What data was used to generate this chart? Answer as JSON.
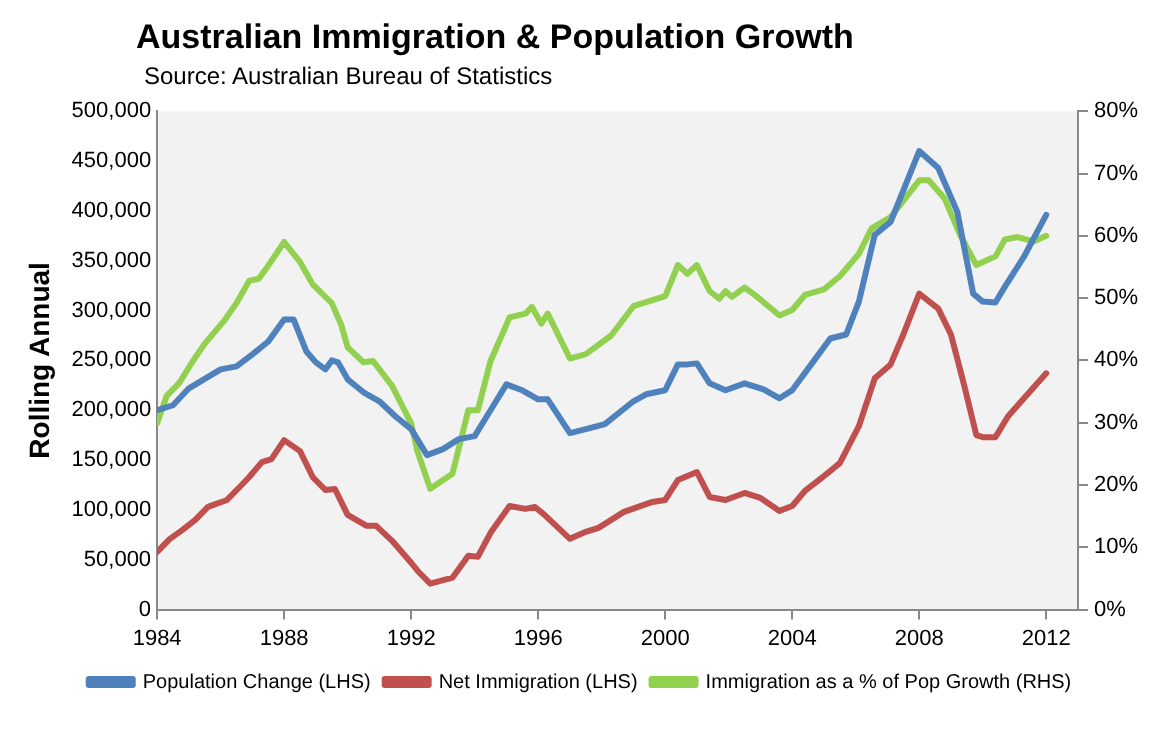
{
  "chart_data": {
    "type": "line",
    "title": "Australian Immigration & Population Growth",
    "annotations": [
      "Source:  Australian Bureau of Statistics"
    ],
    "ylabel": "Rolling Annual",
    "legend": "bottom",
    "grid": false,
    "marker": "none",
    "line_style": "solid",
    "xlim": [
      1984,
      2013
    ],
    "xticks": [
      1984,
      1988,
      1992,
      1996,
      2000,
      2004,
      2008,
      2012
    ],
    "ylim": [
      0,
      500000
    ],
    "yticks": [
      0,
      {
        "value": 50000,
        "label": "50,000"
      },
      {
        "value": 100000,
        "label": "100,000"
      },
      {
        "value": 150000,
        "label": "150,000"
      },
      {
        "value": 200000,
        "label": "200,000"
      },
      {
        "value": 250000,
        "label": "250,000"
      },
      {
        "value": 300000,
        "label": "300,000"
      },
      {
        "value": 350000,
        "label": "350,000"
      },
      {
        "value": 400000,
        "label": "400,000"
      },
      {
        "value": 450000,
        "label": "450,000"
      },
      {
        "value": 500000,
        "label": "500,000"
      }
    ],
    "y2lim": [
      0,
      80
    ],
    "y2ticks": [
      {
        "value": 0,
        "label": "0%"
      },
      {
        "value": 10,
        "label": "10%"
      },
      {
        "value": 20,
        "label": "20%"
      },
      {
        "value": 30,
        "label": "30%"
      },
      {
        "value": 40,
        "label": "40%"
      },
      {
        "value": 50,
        "label": "50%"
      },
      {
        "value": 60,
        "label": "60%"
      },
      {
        "value": 70,
        "label": "70%"
      },
      {
        "value": 80,
        "label": "80%"
      }
    ],
    "series": [
      {
        "name": "Population Change (LHS)",
        "color": "#4f81bd",
        "x": [
          1984,
          1984.5,
          1985,
          1986,
          1986.5,
          1987,
          1987.5,
          1988,
          1988.3,
          1988.7,
          1989,
          1989.3,
          1989.5,
          1989.7,
          1990,
          1990.5,
          1991,
          1991.5,
          1992,
          1992.5,
          1993,
          1993.5,
          1994,
          1994.5,
          1995,
          1995.5,
          1996,
          1996.3,
          1997,
          1997.5,
          1998.1,
          1999,
          1999.4,
          2000,
          2000.4,
          2000.7,
          2001,
          2001.4,
          2001.9,
          2002.5,
          2003.1,
          2003.6,
          2004,
          2004.6,
          2005.2,
          2005.7,
          2006.1,
          2006.6,
          2007.1,
          2008,
          2008.6,
          2009.2,
          2009.7,
          2010,
          2010.4,
          2010.7,
          2011.3,
          2012
        ],
        "values": [
          200000,
          205000,
          222000,
          241000,
          244000,
          256000,
          269000,
          291000,
          291000,
          259000,
          248000,
          241000,
          250000,
          248000,
          231000,
          218000,
          209000,
          194000,
          181000,
          155000,
          161000,
          171000,
          174000,
          200000,
          226000,
          220000,
          211000,
          211000,
          177000,
          181000,
          186000,
          209000,
          216000,
          220000,
          246000,
          246000,
          247000,
          227000,
          220000,
          227000,
          221000,
          212000,
          220000,
          246000,
          272000,
          276000,
          309000,
          376000,
          389000,
          460000,
          443000,
          399000,
          317000,
          309000,
          308000,
          324000,
          354000,
          396000
        ]
      },
      {
        "name": "Net Immigration (LHS)",
        "color": "#c0504d",
        "x": [
          1984,
          1984.4,
          1984.8,
          1985.2,
          1985.6,
          1986.2,
          1986.6,
          1986.9,
          1987.3,
          1987.6,
          1988,
          1988.5,
          1988.9,
          1989.3,
          1989.6,
          1990,
          1990.6,
          1990.9,
          1991.4,
          1992,
          1992.2,
          1992.6,
          1993.3,
          1993.8,
          1994.1,
          1994.5,
          1995.1,
          1995.6,
          1995.9,
          1996.2,
          1997,
          1997.5,
          1997.9,
          1998.7,
          1999.6,
          2000,
          2000.4,
          2000.7,
          2001,
          2001.4,
          2001.9,
          2002.5,
          2003,
          2003.6,
          2004,
          2004.4,
          2005,
          2005.5,
          2006.1,
          2006.6,
          2007.1,
          2007.5,
          2008,
          2008.6,
          2009,
          2009.4,
          2009.8,
          2010,
          2010.4,
          2010.8,
          2011.3,
          2012
        ],
        "values": [
          58000,
          71000,
          80000,
          90000,
          103000,
          110000,
          123000,
          133000,
          148000,
          151000,
          170000,
          159000,
          133000,
          120000,
          121000,
          95000,
          84000,
          84000,
          69000,
          47000,
          39000,
          26000,
          32000,
          54000,
          53000,
          77000,
          104000,
          101000,
          103000,
          95000,
          71000,
          78000,
          82000,
          98000,
          108000,
          110000,
          130000,
          134000,
          138000,
          113000,
          110000,
          117000,
          112000,
          99000,
          104000,
          119000,
          134000,
          147000,
          184000,
          232000,
          246000,
          276000,
          317000,
          302000,
          276000,
          227000,
          175000,
          173000,
          173000,
          194000,
          212000,
          237000
        ]
      },
      {
        "name": "Immigration as a % of Pop Growth (RHS)",
        "color": "#92d050",
        "axis": "y2",
        "x": [
          1984,
          1984.3,
          1984.7,
          1985.1,
          1985.5,
          1986.1,
          1986.5,
          1986.9,
          1987.2,
          1987.5,
          1988,
          1988.5,
          1988.9,
          1989.5,
          1989.8,
          1990,
          1990.5,
          1990.8,
          1991.4,
          1992,
          1992.2,
          1992.6,
          1993.3,
          1993.8,
          1994.1,
          1994.5,
          1995.1,
          1995.6,
          1995.8,
          1996.1,
          1996.3,
          1997,
          1997.5,
          1998.3,
          1999,
          2000,
          2000.4,
          2000.7,
          2001,
          2001.4,
          2001.7,
          2001.9,
          2002.1,
          2002.5,
          2002.9,
          2003.6,
          2004,
          2004.4,
          2005,
          2005.5,
          2006.1,
          2006.5,
          2007.1,
          2008,
          2008.3,
          2008.8,
          2009.3,
          2009.8,
          2010.4,
          2010.7,
          2011.1,
          2011.6,
          2012
        ],
        "values": [
          29.9,
          34.3,
          36.4,
          39.7,
          42.7,
          46.3,
          49.2,
          52.8,
          53.1,
          55.2,
          59.0,
          55.8,
          52.2,
          49.2,
          45.7,
          42.1,
          39.7,
          39.9,
          35.9,
          29.9,
          25.4,
          19.4,
          21.8,
          32.0,
          32.0,
          39.9,
          46.9,
          47.5,
          48.6,
          45.9,
          47.5,
          40.3,
          41.0,
          44.0,
          48.7,
          50.3,
          55.3,
          53.9,
          55.3,
          51.1,
          49.9,
          51.1,
          50.2,
          51.7,
          50.2,
          47.2,
          48.1,
          50.5,
          51.4,
          53.5,
          57.1,
          61.2,
          63.0,
          68.9,
          68.9,
          66.0,
          60.0,
          55.3,
          56.7,
          59.4,
          59.8,
          59.1,
          60.0
        ]
      }
    ]
  }
}
